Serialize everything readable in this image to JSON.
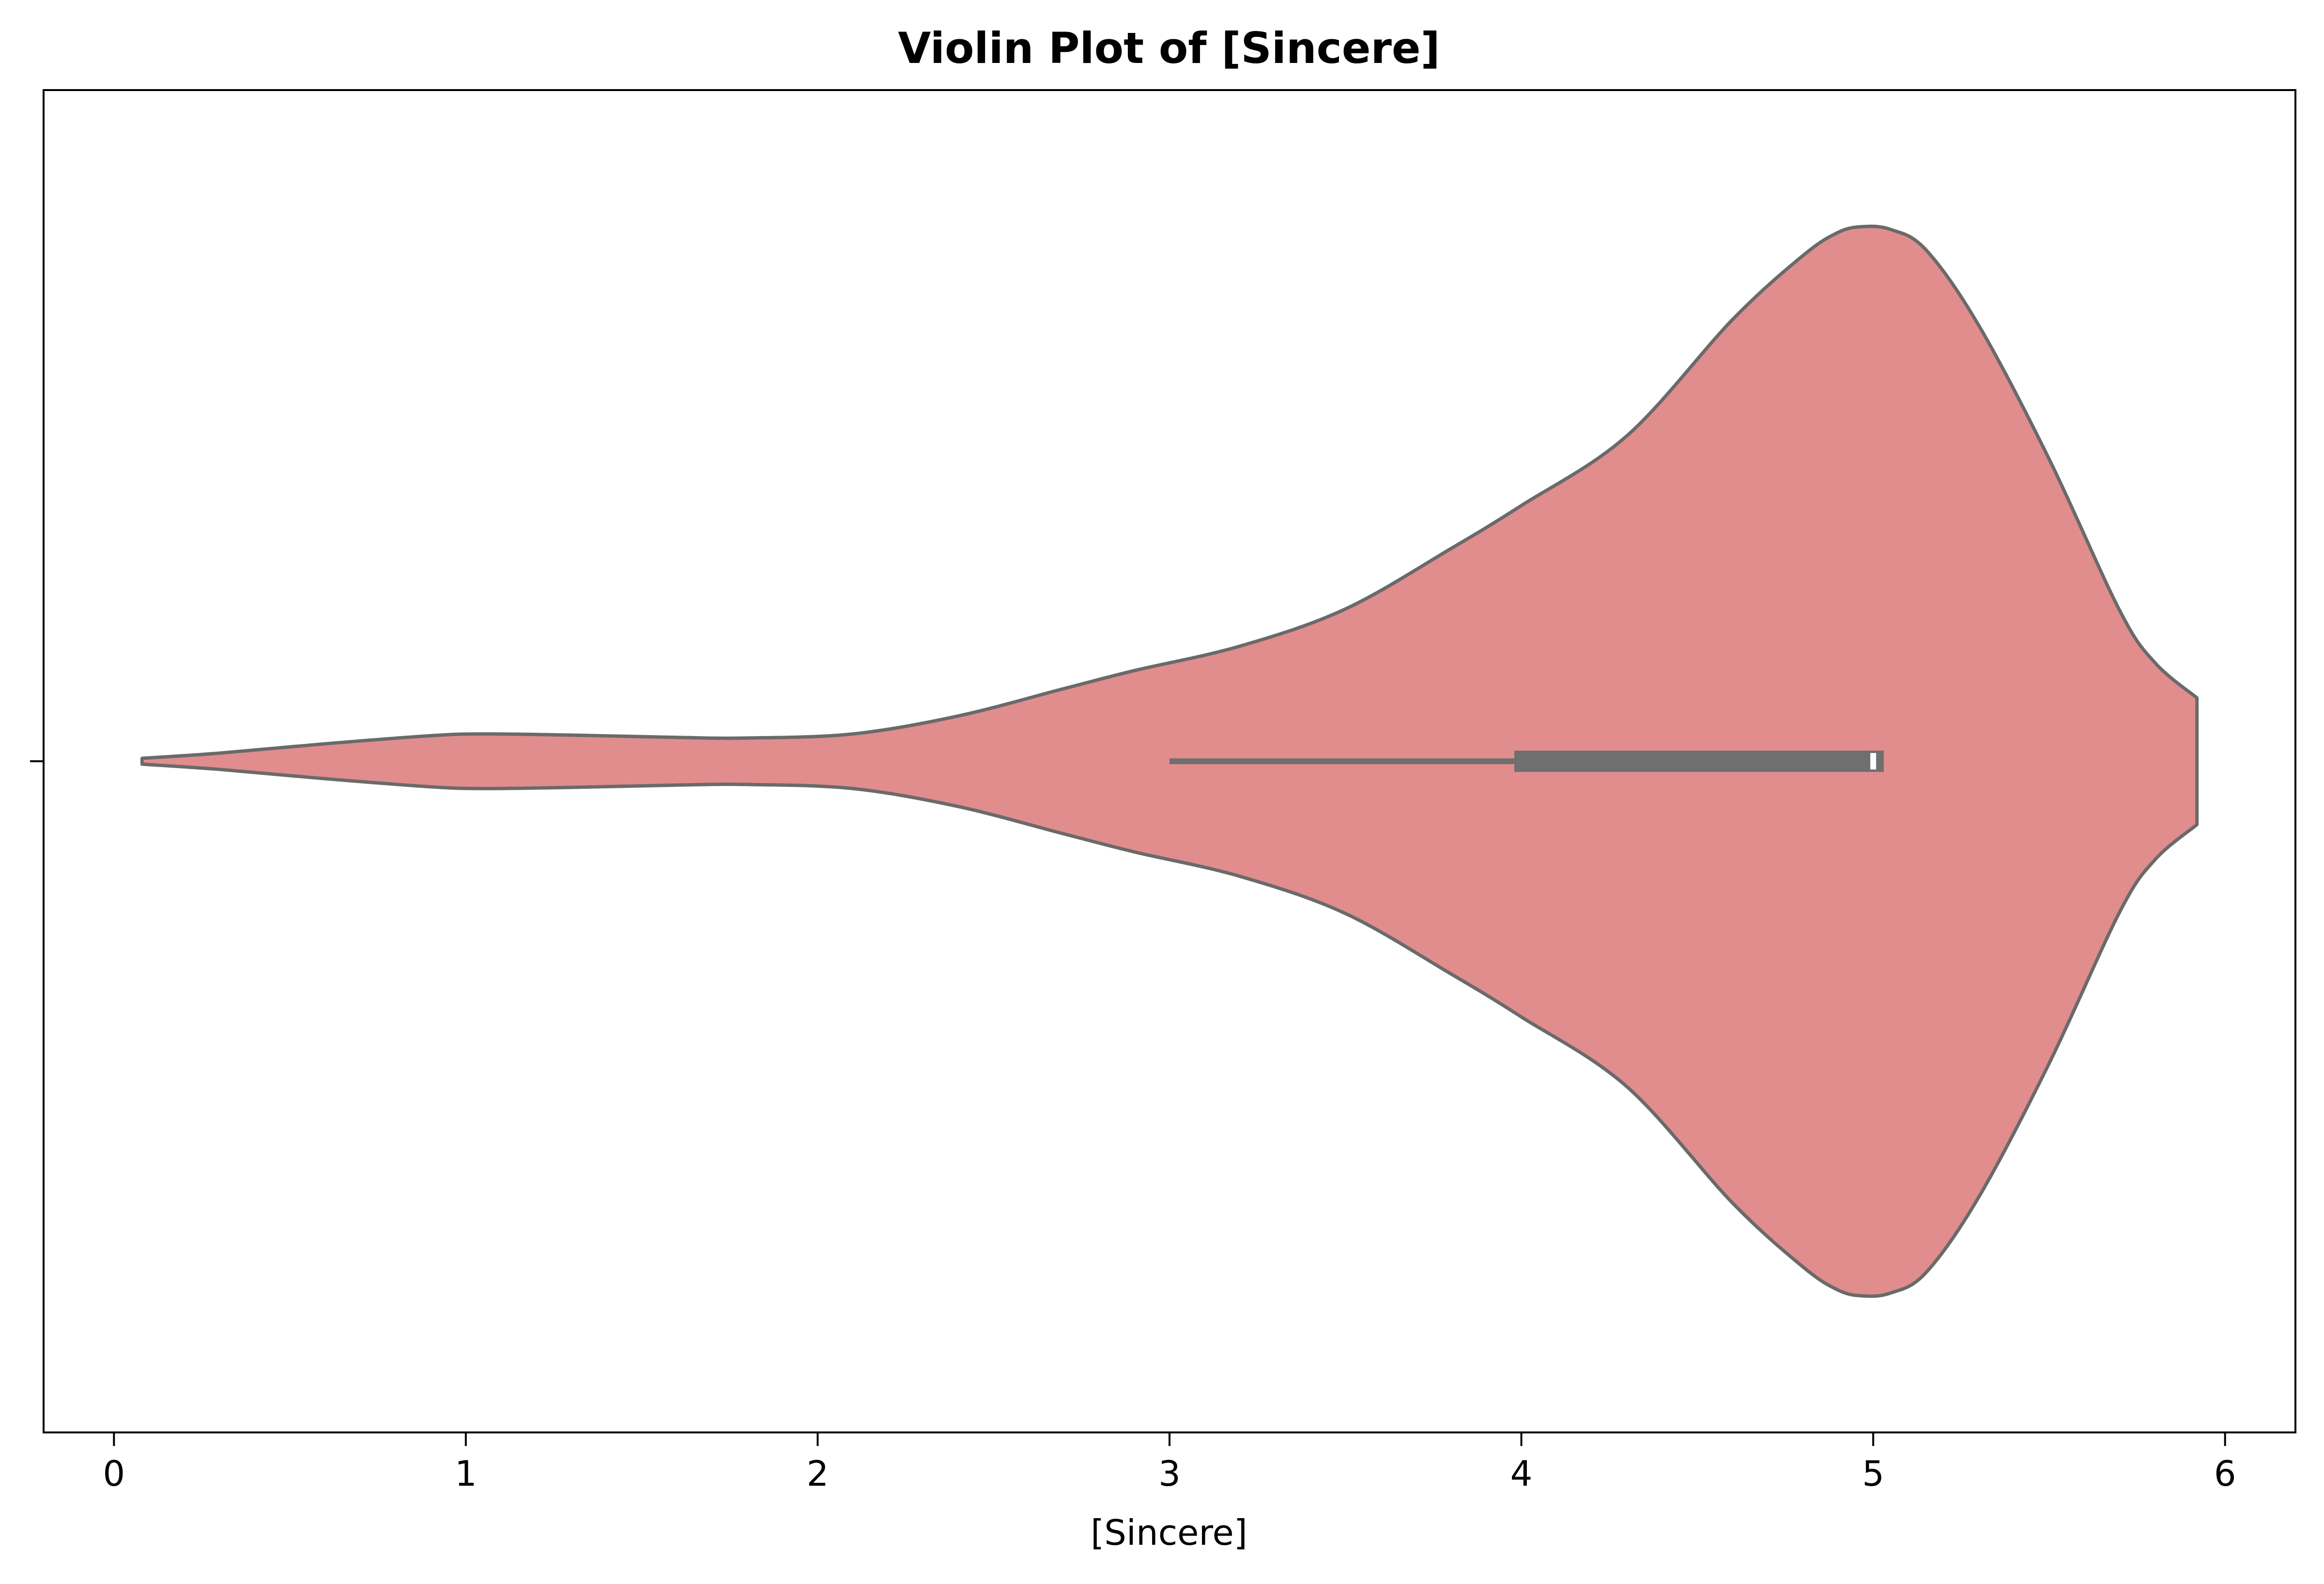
{
  "chart_data": {
    "type": "violin",
    "title": "Violin Plot of [Sincere]",
    "xlabel": "[Sincere]",
    "ylabel": "",
    "xlim": [
      -0.2,
      6.2
    ],
    "xticks": [
      0,
      1,
      2,
      3,
      4,
      5,
      6
    ],
    "grid": false,
    "colors": {
      "fill": "#e18d8d",
      "edge": "#6a6a6a",
      "box": "#6f6f6f",
      "median": "#ffffff"
    },
    "density_profile": {
      "x": [
        0.08,
        0.3,
        0.6,
        0.9,
        1.05,
        1.3,
        1.6,
        1.8,
        2.1,
        2.4,
        2.7,
        2.9,
        3.2,
        3.5,
        3.8,
        4.0,
        4.3,
        4.6,
        4.8,
        4.9,
        4.97,
        5.05,
        5.15,
        5.3,
        5.5,
        5.7,
        5.8,
        5.92
      ],
      "half_width": [
        0.005,
        0.014,
        0.03,
        0.044,
        0.047,
        0.045,
        0.041,
        0.04,
        0.047,
        0.078,
        0.125,
        0.156,
        0.198,
        0.262,
        0.366,
        0.44,
        0.56,
        0.76,
        0.87,
        0.91,
        0.92,
        0.915,
        0.88,
        0.75,
        0.52,
        0.26,
        0.17,
        0.109
      ]
    },
    "box": {
      "whisker_low": 3.0,
      "q1": 3.98,
      "median": 5.0,
      "q3": 5.03,
      "whisker_high": 5.03
    }
  }
}
